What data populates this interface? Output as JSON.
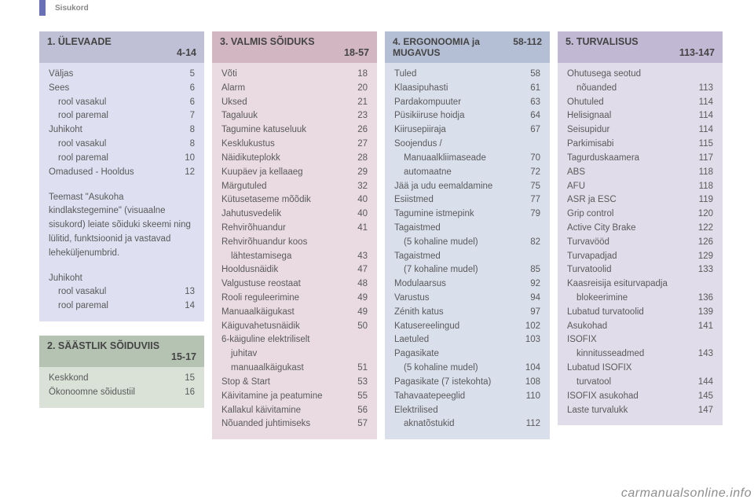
{
  "header_hint": "Sisukord",
  "watermark": "carmanualsonline.info",
  "panels": {
    "p1": {
      "title": "1. ÜLEVAADE",
      "range": "4-14",
      "rows1": [
        {
          "label": "Väljas",
          "page": "5"
        },
        {
          "label": "Sees",
          "page": "6"
        },
        {
          "label": "rool vasakul",
          "page": "6",
          "indent": 1
        },
        {
          "label": "rool paremal",
          "page": "7",
          "indent": 1
        },
        {
          "label": "Juhikoht",
          "page": "8"
        },
        {
          "label": "rool vasakul",
          "page": "8",
          "indent": 1
        },
        {
          "label": "rool paremal",
          "page": "10",
          "indent": 1
        },
        {
          "label": "Omadused - Hooldus",
          "page": "12"
        }
      ],
      "note": "Teemast \"Asukoha kindlakstegemine\" (visuaalne sisukord) leiate sõiduki skeemi ning lülitid, funktsioonid ja vastavad leheküljenumbrid.",
      "rows2": [
        {
          "label": "Juhikoht",
          "page": ""
        },
        {
          "label": "rool vasakul",
          "page": "13",
          "indent": 1
        },
        {
          "label": "rool paremal",
          "page": "14",
          "indent": 1
        }
      ]
    },
    "p2": {
      "title": "2. SÄÄSTLIK SÕIDUVIIS",
      "range": "15-17",
      "rows": [
        {
          "label": "Keskkond",
          "page": "15"
        },
        {
          "label": "Ökonoomne sõidustiil",
          "page": "16"
        }
      ]
    },
    "p3": {
      "title": "3. VALMIS SÕIDUKS",
      "range": "18-57",
      "rows": [
        {
          "label": "Võti",
          "page": "18"
        },
        {
          "label": "Alarm",
          "page": "20"
        },
        {
          "label": "Uksed",
          "page": "21"
        },
        {
          "label": "Tagaluuk",
          "page": "23"
        },
        {
          "label": "Tagumine katuseluuk",
          "page": "26"
        },
        {
          "label": "Kesklukustus",
          "page": "27"
        },
        {
          "label": "Näidikuteplokk",
          "page": "28"
        },
        {
          "label": "Kuupäev ja kellaaeg",
          "page": "29"
        },
        {
          "label": "Märgutuled",
          "page": "32"
        },
        {
          "label": "Kütusetaseme mõõdik",
          "page": "40"
        },
        {
          "label": "Jahutusvedelik",
          "page": "40"
        },
        {
          "label": "Rehvirõhuandur",
          "page": "41"
        },
        {
          "label": "Rehvirõhuandur koos",
          "page": ""
        },
        {
          "label": "lähtestamisega",
          "page": "43",
          "indent": 1
        },
        {
          "label": "Hooldusnäidik",
          "page": "47"
        },
        {
          "label": "Valgustuse reostaat",
          "page": "48"
        },
        {
          "label": "Rooli reguleerimine",
          "page": "49"
        },
        {
          "label": "Manuaalkäigukast",
          "page": "49"
        },
        {
          "label": "Käiguvahetusnäidik",
          "page": "50"
        },
        {
          "label": "6-käiguline elektriliselt",
          "page": ""
        },
        {
          "label": "juhitav",
          "page": "",
          "indent": 1
        },
        {
          "label": "manuaalkäigukast",
          "page": "51",
          "indent": 1
        },
        {
          "label": "Stop & Start",
          "page": "53"
        },
        {
          "label": "Käivitamine ja peatumine",
          "page": "55"
        },
        {
          "label": "Kallakul käivitamine",
          "page": "56"
        },
        {
          "label": "Nõuanded juhtimiseks",
          "page": "57"
        }
      ]
    },
    "p4": {
      "title": "4. ERGONOOMIA ja MUGAVUS",
      "range": "58-112",
      "rows": [
        {
          "label": "Tuled",
          "page": "58"
        },
        {
          "label": "Klaasipuhasti",
          "page": "61"
        },
        {
          "label": "Pardakompuuter",
          "page": "63"
        },
        {
          "label": "Püsikiiruse hoidja",
          "page": "64"
        },
        {
          "label": "Kiirusepiiraja",
          "page": "67"
        },
        {
          "label": "Soojendus /",
          "page": ""
        },
        {
          "label": "Manuaalkliimaseade",
          "page": "70",
          "indent": 1
        },
        {
          "label": "automaatne",
          "page": "72",
          "indent": 1
        },
        {
          "label": "Jää ja udu eemaldamine",
          "page": "75"
        },
        {
          "label": "Esiistmed",
          "page": "77"
        },
        {
          "label": "Tagumine istmepink",
          "page": "79"
        },
        {
          "label": "Tagaistmed",
          "page": ""
        },
        {
          "label": "(5 kohaline mudel)",
          "page": "82",
          "indent": 1
        },
        {
          "label": "Tagaistmed",
          "page": ""
        },
        {
          "label": "(7 kohaline mudel)",
          "page": "85",
          "indent": 1
        },
        {
          "label": "Modulaarsus",
          "page": "92"
        },
        {
          "label": "Varustus",
          "page": "94"
        },
        {
          "label": "Zénith katus",
          "page": "97"
        },
        {
          "label": "Katusereelingud",
          "page": "102"
        },
        {
          "label": "Laetuled",
          "page": "103"
        },
        {
          "label": "Pagasikate",
          "page": ""
        },
        {
          "label": "(5 kohaline mudel)",
          "page": "104",
          "indent": 1
        },
        {
          "label": "Pagasikate (7 istekohta)",
          "page": "108"
        },
        {
          "label": "Tahavaatepeeglid",
          "page": "110"
        },
        {
          "label": "Elektrilised",
          "page": ""
        },
        {
          "label": "aknatõstukid",
          "page": "112",
          "indent": 1
        }
      ]
    },
    "p5": {
      "title": "5. TURVALISUS",
      "range": "113-147",
      "rows": [
        {
          "label": "Ohutusega seotud",
          "page": ""
        },
        {
          "label": "nõuanded",
          "page": "113",
          "indent": 1
        },
        {
          "label": "Ohutuled",
          "page": "114"
        },
        {
          "label": "Helisignaal",
          "page": "114"
        },
        {
          "label": "Seisupidur",
          "page": "114"
        },
        {
          "label": "Parkimisabi",
          "page": "115"
        },
        {
          "label": "Tagurduskaamera",
          "page": "117"
        },
        {
          "label": "ABS",
          "page": "118"
        },
        {
          "label": "AFU",
          "page": "118"
        },
        {
          "label": "ASR ja ESC",
          "page": "119"
        },
        {
          "label": "Grip control",
          "page": "120"
        },
        {
          "label": "Active City Brake",
          "page": "122"
        },
        {
          "label": "Turvavööd",
          "page": "126"
        },
        {
          "label": "Turvapadjad",
          "page": "129"
        },
        {
          "label": "Turvatoolid",
          "page": "133"
        },
        {
          "label": "Kaasreisija esiturvapadja",
          "page": ""
        },
        {
          "label": "blokeerimine",
          "page": "136",
          "indent": 1
        },
        {
          "label": "Lubatud turvatoolid",
          "page": "139"
        },
        {
          "label": "Asukohad",
          "page": "141"
        },
        {
          "label": "ISOFIX",
          "page": ""
        },
        {
          "label": "kinnitusseadmed",
          "page": "143",
          "indent": 1
        },
        {
          "label": "Lubatud ISOFIX",
          "page": ""
        },
        {
          "label": "turvatool",
          "page": "144",
          "indent": 1
        },
        {
          "label": "ISOFIX asukohad",
          "page": "145"
        },
        {
          "label": "Laste turvalukk",
          "page": "147"
        }
      ]
    }
  }
}
